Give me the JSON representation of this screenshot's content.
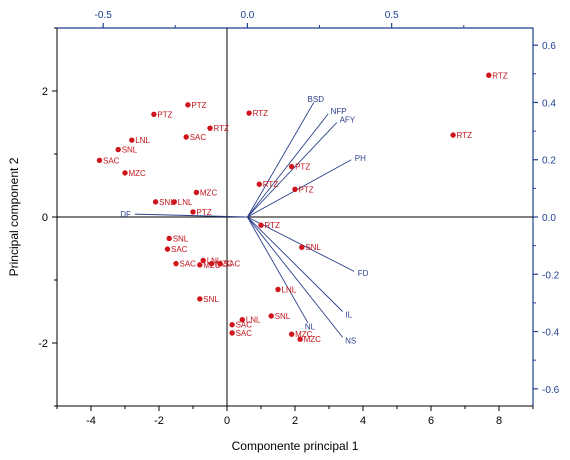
{
  "chart_data": {
    "type": "scatter",
    "xlabel": "Componente principal 1",
    "ylabel": "Principal component 2",
    "xlim": [
      -5,
      9
    ],
    "ylim": [
      -3,
      3
    ],
    "x_ticks": [
      -4,
      -2,
      0,
      2,
      4,
      6,
      8
    ],
    "y_ticks": [
      -2,
      0,
      2
    ],
    "top_axis": {
      "lim": [
        -0.66,
        0.99
      ],
      "ticks": [
        -0.5,
        0.0,
        0.5
      ],
      "tick_labels": [
        "-0.5",
        "0.0",
        "0.5"
      ]
    },
    "right_axis": {
      "lim": [
        -0.66,
        0.66
      ],
      "ticks": [
        0.6,
        0.4,
        0.2,
        0.0,
        -0.2,
        -0.4,
        -0.6
      ],
      "tick_labels": [
        "0.6",
        "0.4",
        "0.2",
        "0.0",
        "-0.2",
        "-0.4",
        "-0.6"
      ]
    },
    "points": [
      {
        "label": "RTZ",
        "x": 7.7,
        "y": 2.25
      },
      {
        "label": "RTZ",
        "x": 6.65,
        "y": 1.3
      },
      {
        "label": "PTZ",
        "x": -1.15,
        "y": 1.78
      },
      {
        "label": "PTZ",
        "x": -2.15,
        "y": 1.63
      },
      {
        "label": "RTZ",
        "x": 0.65,
        "y": 1.65
      },
      {
        "label": "RTZ",
        "x": -0.5,
        "y": 1.41
      },
      {
        "label": "SAC",
        "x": -1.2,
        "y": 1.27
      },
      {
        "label": "LNL",
        "x": -2.8,
        "y": 1.22
      },
      {
        "label": "SNL",
        "x": -3.2,
        "y": 1.07
      },
      {
        "label": "SAC",
        "x": -3.75,
        "y": 0.9
      },
      {
        "label": "MZC",
        "x": -3.0,
        "y": 0.7
      },
      {
        "label": "PTZ",
        "x": 1.9,
        "y": 0.8
      },
      {
        "label": "RTZ",
        "x": 0.95,
        "y": 0.52
      },
      {
        "label": "PTZ",
        "x": 2.0,
        "y": 0.44
      },
      {
        "label": "MZC",
        "x": -0.9,
        "y": 0.39
      },
      {
        "label": "SNL",
        "x": -2.1,
        "y": 0.24
      },
      {
        "label": "LNL",
        "x": -1.55,
        "y": 0.24
      },
      {
        "label": "PTZ",
        "x": -1.0,
        "y": 0.08
      },
      {
        "label": "RTZ",
        "x": 1.0,
        "y": -0.13
      },
      {
        "label": "SNL",
        "x": -1.7,
        "y": -0.34
      },
      {
        "label": "SAC",
        "x": -1.75,
        "y": -0.51
      },
      {
        "label": "SNL",
        "x": 2.2,
        "y": -0.48
      },
      {
        "label": "SAC",
        "x": -1.5,
        "y": -0.74
      },
      {
        "label": "LNL",
        "x": -0.7,
        "y": -0.69
      },
      {
        "label": "MZC",
        "x": -0.8,
        "y": -0.76
      },
      {
        "label": "MZC",
        "x": -0.45,
        "y": -0.74
      },
      {
        "label": "SAC",
        "x": -0.2,
        "y": -0.74
      },
      {
        "label": "LNL",
        "x": 1.5,
        "y": -1.15
      },
      {
        "label": "SNL",
        "x": -0.8,
        "y": -1.3
      },
      {
        "label": "SNL",
        "x": 1.3,
        "y": -1.57
      },
      {
        "label": "LNL",
        "x": 0.45,
        "y": -1.63
      },
      {
        "label": "SAC",
        "x": 0.15,
        "y": -1.71
      },
      {
        "label": "SAC",
        "x": 0.15,
        "y": -1.84
      },
      {
        "label": "MZC",
        "x": 1.9,
        "y": -1.86
      },
      {
        "label": "MZC",
        "x": 2.15,
        "y": -1.94
      }
    ],
    "loadings": [
      {
        "label": "BSD",
        "x": 0.23,
        "y": 0.4
      },
      {
        "label": "NFP",
        "x": 0.28,
        "y": 0.36
      },
      {
        "label": "AFY",
        "x": 0.31,
        "y": 0.33
      },
      {
        "label": "PH",
        "x": 0.36,
        "y": 0.2
      },
      {
        "label": "DF",
        "x": -0.39,
        "y": 0.01
      },
      {
        "label": "FD",
        "x": 0.37,
        "y": -0.19
      },
      {
        "label": "IL",
        "x": 0.33,
        "y": -0.33
      },
      {
        "label": "NL",
        "x": 0.21,
        "y": -0.37
      },
      {
        "label": "NS",
        "x": 0.33,
        "y": -0.42
      }
    ]
  }
}
